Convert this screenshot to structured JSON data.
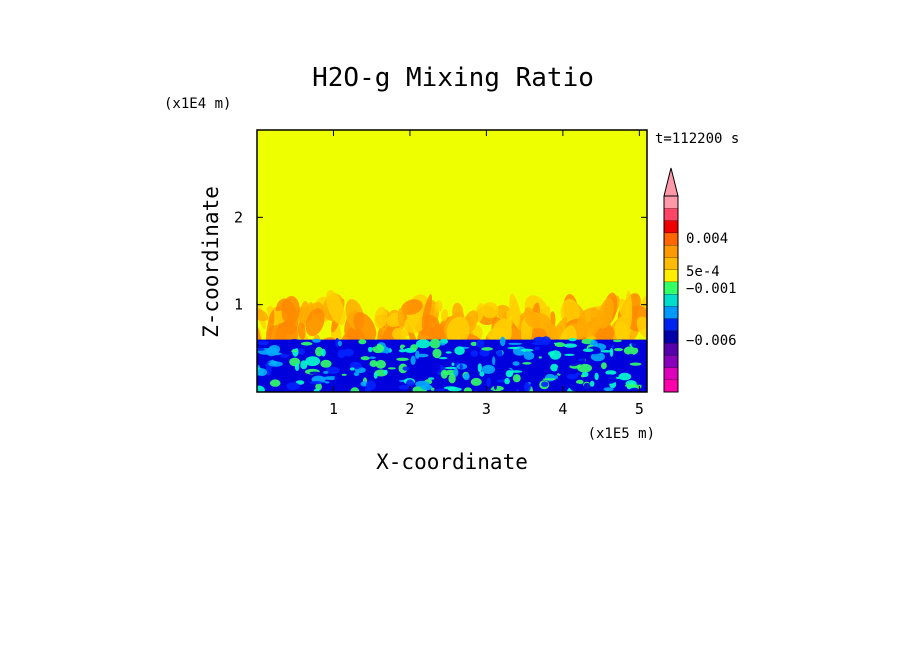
{
  "chart_data": {
    "type": "heatmap",
    "title": "H2O-g Mixing Ratio",
    "xlabel": "X-coordinate",
    "ylabel": "Z-coordinate",
    "x_scale_label": "(x1E5 m)",
    "y_scale_label": "(x1E4 m)",
    "time_label": "t=112200 s",
    "xlim": [
      0,
      5.1
    ],
    "ylim": [
      0,
      3.0
    ],
    "x_ticks": [
      "1",
      "2",
      "3",
      "4",
      "5"
    ],
    "x_tick_values": [
      1,
      2,
      3,
      4,
      5
    ],
    "y_ticks": [
      "1",
      "2"
    ],
    "y_tick_values": [
      1,
      2
    ],
    "layers": [
      {
        "name": "upper-uniform",
        "z_range": [
          1.05,
          3.0
        ],
        "color": "#eeff00"
      },
      {
        "name": "turbulent-transition",
        "z_range": [
          0.6,
          1.05
        ],
        "colors": [
          "#ffd000",
          "#ffaa00",
          "#ff8800"
        ]
      },
      {
        "name": "boundary-layer",
        "z_range": [
          0.0,
          0.6
        ],
        "colors": [
          "#0000dd",
          "#0022ff",
          "#00aaff",
          "#00ffcc",
          "#33ff66"
        ]
      }
    ],
    "colorbar": {
      "colors": [
        "#ff00aa",
        "#dd00bb",
        "#8800bb",
        "#5500aa",
        "#0000aa",
        "#0022ee",
        "#0099ff",
        "#00ddcc",
        "#33ff66",
        "#ffee00",
        "#ffbb00",
        "#ff9900",
        "#ff6600",
        "#ee0000",
        "#ff4466",
        "#ff99aa"
      ],
      "labels": [
        "0.004",
        "5e-4",
        "−0.001",
        "−0.006"
      ],
      "extend": "max"
    }
  }
}
